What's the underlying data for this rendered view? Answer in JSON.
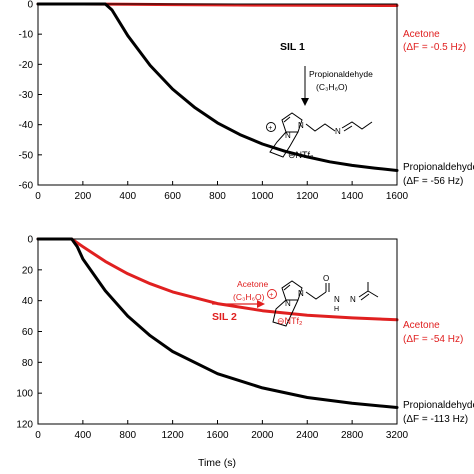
{
  "chart_data": [
    {
      "type": "line",
      "xlabel": "",
      "ylabel": "",
      "xlim": [
        0,
        1600
      ],
      "ylim": [
        -60,
        0
      ],
      "xticks": [
        "0",
        "200",
        "400",
        "600",
        "800",
        "1000",
        "1200",
        "1400",
        "1600"
      ],
      "yticks": [
        "0",
        "-10",
        "-20",
        "-30",
        "-40",
        "-50",
        "-60"
      ],
      "grid": false,
      "series": [
        {
          "name": "Acetone",
          "color": "#e02020",
          "x": [
            0,
            200,
            400,
            600,
            800,
            1000,
            1200,
            1400,
            1600
          ],
          "y": [
            0,
            0,
            -0.1,
            -0.2,
            -0.3,
            -0.35,
            -0.4,
            -0.45,
            -0.5
          ]
        },
        {
          "name": "Propionaldehyde",
          "color": "#000000",
          "x": [
            0,
            300,
            330,
            400,
            500,
            600,
            700,
            800,
            900,
            1000,
            1100,
            1200,
            1300,
            1400,
            1500,
            1600
          ],
          "y": [
            0,
            0,
            -2,
            -10.5,
            -20.4,
            -28.2,
            -34.4,
            -39.4,
            -43.3,
            -46.4,
            -48.8,
            -50.7,
            -52.3,
            -53.5,
            -54.4,
            -55.2
          ]
        }
      ],
      "annotations": {
        "acetone_label": "Acetone",
        "acetone_delta": "(ΔF = -0.5 Hz)",
        "propional_label": "Propionaldehyde",
        "propional_delta": "(ΔF = -56 Hz)",
        "sil_label": "SIL 1",
        "reagent_name": "Propionaldehyde",
        "reagent_formula": "(C₃H₆O)",
        "counterion": "⊖NTf₂"
      }
    },
    {
      "type": "line",
      "xlabel": "Time (s)",
      "ylabel": "",
      "xlim": [
        0,
        3200
      ],
      "ylim": [
        -120,
        0
      ],
      "xticks": [
        "0",
        "400",
        "800",
        "1200",
        "1600",
        "2000",
        "2400",
        "2800",
        "3200"
      ],
      "yticks": [
        "0",
        "20",
        "40",
        "60",
        "80",
        "100",
        "120"
      ],
      "grid": false,
      "series": [
        {
          "name": "Acetone",
          "color": "#e02020",
          "x": [
            0,
            300,
            400,
            600,
            800,
            1000,
            1200,
            1600,
            2000,
            2400,
            2800,
            3200
          ],
          "y": [
            0,
            0,
            -5,
            -14.5,
            -22.6,
            -29,
            -34.3,
            -41.9,
            -46.5,
            -49.4,
            -51.2,
            -52.4
          ]
        },
        {
          "name": "Propionaldehyde",
          "color": "#000000",
          "x": [
            0,
            300,
            350,
            400,
            600,
            800,
            1000,
            1200,
            1600,
            2000,
            2400,
            2800,
            3200
          ],
          "y": [
            0,
            0,
            -5,
            -13,
            -33.6,
            -50,
            -62.7,
            -73,
            -87.4,
            -96.6,
            -102.8,
            -106.6,
            -109.3
          ]
        }
      ],
      "annotations": {
        "acetone_label": "Acetone",
        "acetone_delta": "(ΔF = -54 Hz)",
        "propional_label": "Propionaldehyde",
        "propional_delta": "(ΔF = -113 Hz)",
        "sil_label": "SIL 2",
        "reagent_name": "Acetone",
        "reagent_formula": "(C₃H₆O)",
        "counterion": "⊖NTf₂"
      }
    }
  ]
}
